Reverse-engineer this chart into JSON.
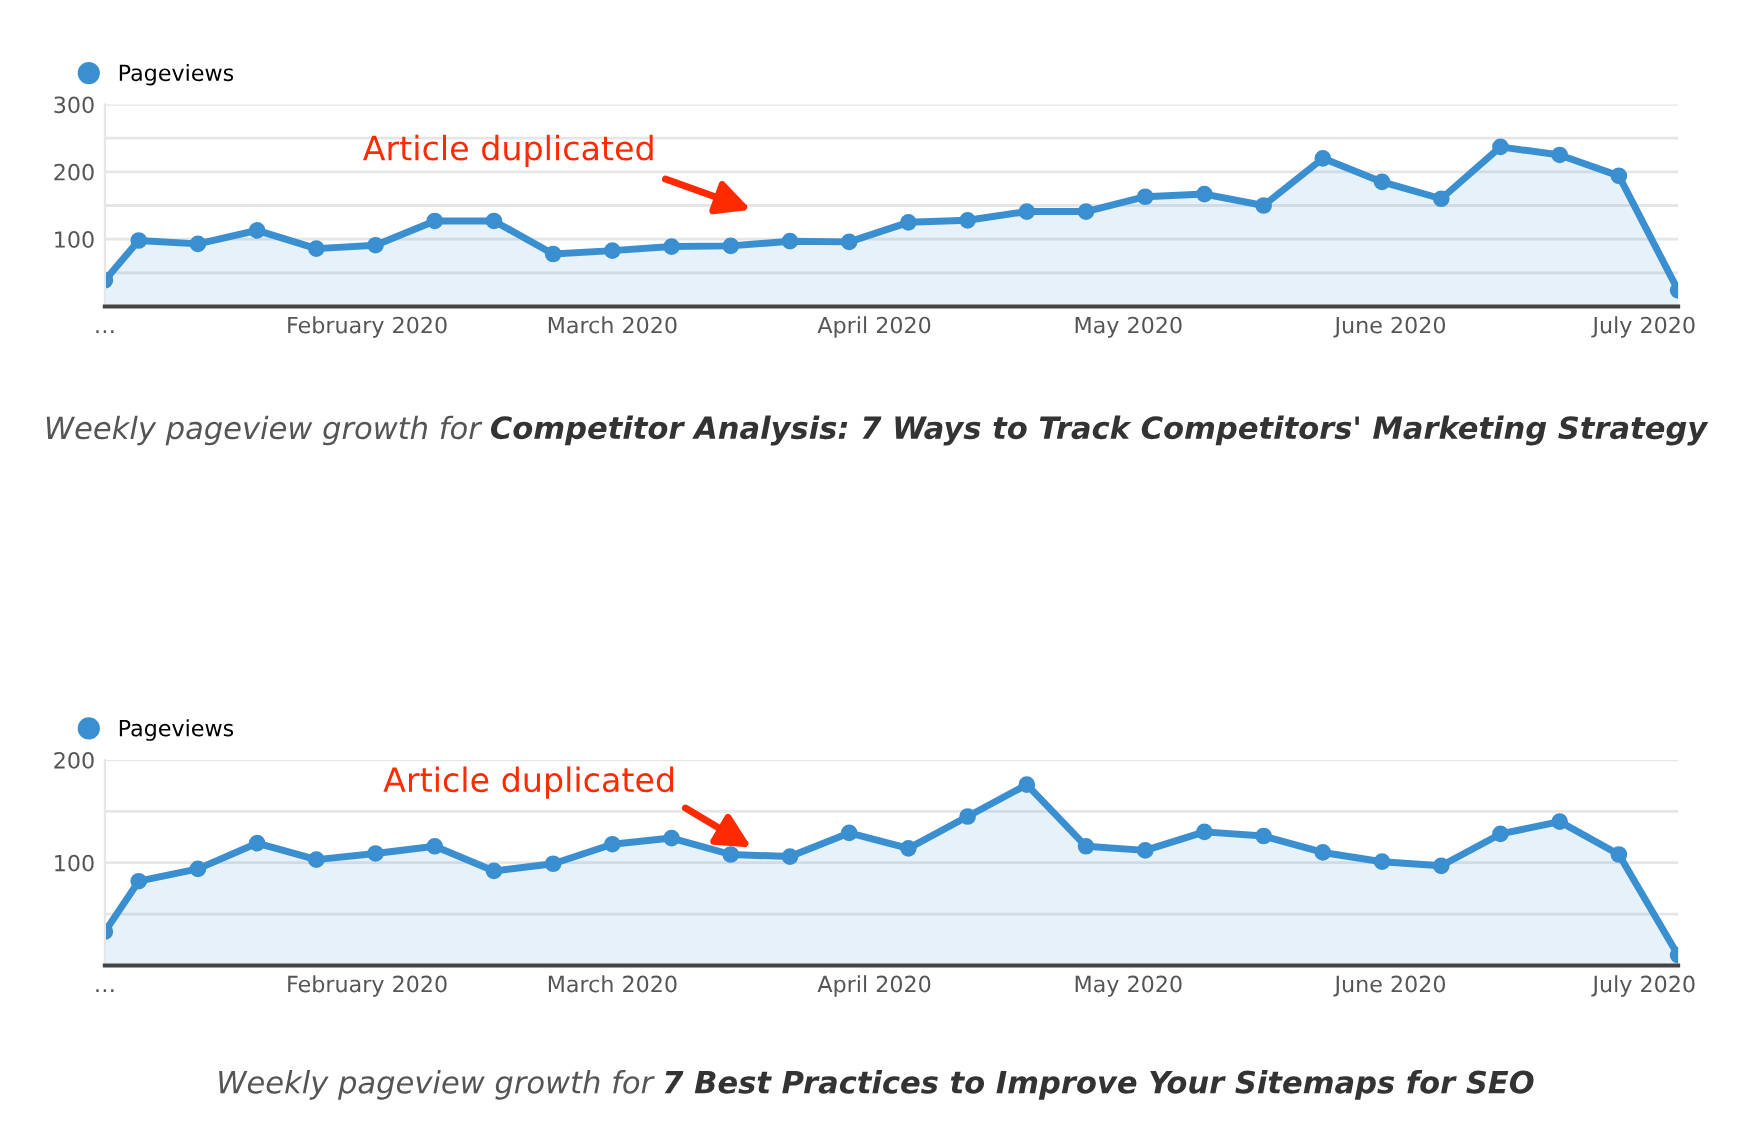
{
  "chart_data": [
    {
      "type": "area",
      "x": [
        "2020-01-01",
        "2020-01-05",
        "2020-01-12",
        "2020-01-19",
        "2020-01-26",
        "2020-02-02",
        "2020-02-09",
        "2020-02-16",
        "2020-02-23",
        "2020-03-01",
        "2020-03-08",
        "2020-03-15",
        "2020-03-22",
        "2020-03-29",
        "2020-04-05",
        "2020-04-12",
        "2020-04-19",
        "2020-04-26",
        "2020-05-03",
        "2020-05-10",
        "2020-05-17",
        "2020-05-24",
        "2020-05-31",
        "2020-06-07",
        "2020-06-14",
        "2020-06-21",
        "2020-06-28",
        "2020-07-05"
      ],
      "series": [
        {
          "name": "Pageviews",
          "color": "#3a8fd0",
          "values": [
            39,
            98,
            93,
            113,
            86,
            91,
            127,
            127,
            78,
            83,
            89,
            90,
            97,
            96,
            125,
            128,
            141,
            141,
            163,
            167,
            150,
            220,
            185,
            160,
            237,
            225,
            194,
            24
          ]
        }
      ],
      "xlim": [
        "2020-01-01",
        "2020-07-05"
      ],
      "xticks": [
        {
          "value": "2020-01-01",
          "label": "…"
        },
        {
          "value": "2020-02-01",
          "label": "February 2020"
        },
        {
          "value": "2020-03-01",
          "label": "March 2020"
        },
        {
          "value": "2020-04-01",
          "label": "April 2020"
        },
        {
          "value": "2020-05-01",
          "label": "May 2020"
        },
        {
          "value": "2020-06-01",
          "label": "June 2020"
        },
        {
          "value": "2020-07-01",
          "label": "July 2020"
        }
      ],
      "ylim": [
        0,
        300
      ],
      "yticks": [
        {
          "value": 50,
          "label": null
        },
        100,
        {
          "value": 150,
          "label": null
        },
        200,
        {
          "value": 250,
          "label": null
        },
        300
      ],
      "grid": "y",
      "legend": "top left",
      "marker": "circle",
      "line_style": "solid",
      "annotations": [
        "Article duplicated",
        "Weekly pageview growth for",
        "Competitor Analysis: 7 Ways to Track Competitors' Marketing Strategy"
      ]
    },
    {
      "type": "area",
      "x": [
        "2020-01-01",
        "2020-01-05",
        "2020-01-12",
        "2020-01-19",
        "2020-01-26",
        "2020-02-02",
        "2020-02-09",
        "2020-02-16",
        "2020-02-23",
        "2020-03-01",
        "2020-03-08",
        "2020-03-15",
        "2020-03-22",
        "2020-03-29",
        "2020-04-05",
        "2020-04-12",
        "2020-04-19",
        "2020-04-26",
        "2020-05-03",
        "2020-05-10",
        "2020-05-17",
        "2020-05-24",
        "2020-05-31",
        "2020-06-07",
        "2020-06-14",
        "2020-06-21",
        "2020-06-28",
        "2020-07-05"
      ],
      "series": [
        {
          "name": "Pageviews",
          "color": "#3a8fd0",
          "values": [
            33,
            82,
            94,
            119,
            103,
            109,
            116,
            92,
            99,
            118,
            124,
            108,
            106,
            129,
            114,
            145,
            176,
            116,
            112,
            130,
            126,
            110,
            101,
            97,
            128,
            140,
            108,
            10
          ]
        }
      ],
      "xlim": [
        "2020-01-01",
        "2020-07-05"
      ],
      "xticks": [
        {
          "value": "2020-01-01",
          "label": "…"
        },
        {
          "value": "2020-02-01",
          "label": "February 2020"
        },
        {
          "value": "2020-03-01",
          "label": "March 2020"
        },
        {
          "value": "2020-04-01",
          "label": "April 2020"
        },
        {
          "value": "2020-05-01",
          "label": "May 2020"
        },
        {
          "value": "2020-06-01",
          "label": "June 2020"
        },
        {
          "value": "2020-07-01",
          "label": "July 2020"
        }
      ],
      "ylim": [
        0,
        200
      ],
      "yticks": [
        {
          "value": 50,
          "label": null
        },
        100,
        {
          "value": 150,
          "label": null
        },
        200
      ],
      "grid": "y",
      "legend": "top left",
      "marker": "circle",
      "line_style": "solid",
      "annotations": [
        "Article duplicated",
        "Weekly pageview growth for",
        "7 Best Practices to Improve Your Sitemaps for SEO"
      ]
    }
  ]
}
